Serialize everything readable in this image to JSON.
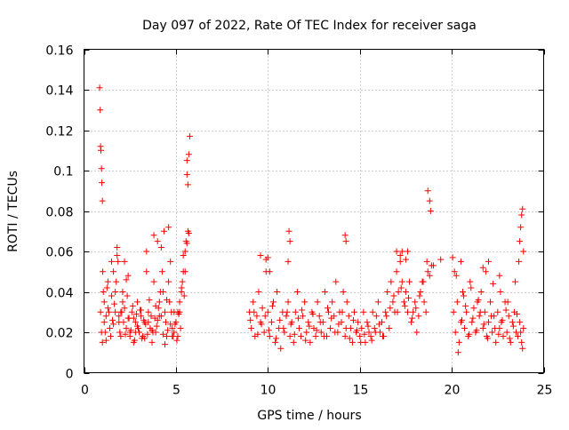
{
  "chart_data": {
    "type": "scatter",
    "title": "Day 097 of 2022, Rate Of TEC Index for receiver saga",
    "xlabel": "GPS time / hours",
    "ylabel": "ROTI / TECUs",
    "xlim": [
      0,
      25
    ],
    "ylim": [
      0,
      0.16
    ],
    "xticks": [
      0,
      5,
      10,
      15,
      20,
      25
    ],
    "yticks": [
      0,
      0.02,
      0.04,
      0.06,
      0.08,
      0.1,
      0.12,
      0.14,
      0.16
    ],
    "xtick_labels": [
      "0",
      "5",
      "10",
      "15",
      "20",
      "25"
    ],
    "ytick_labels": [
      "0",
      "0.02",
      "0.04",
      "0.06",
      "0.08",
      "0.1",
      "0.12",
      "0.14",
      "0.16"
    ],
    "grid": true,
    "marker": "plus",
    "color": "#ff0000",
    "series": [
      {
        "x": [
          0.85,
          0.88,
          0.9,
          0.92,
          0.95,
          0.97,
          1.0,
          1.02,
          1.05,
          0.9,
          0.95,
          1.0,
          1.1,
          1.2,
          1.3,
          1.4,
          1.5,
          1.6,
          1.7,
          1.8,
          1.9,
          2.0,
          2.1,
          2.2,
          2.3,
          2.4,
          2.5,
          2.6,
          2.7,
          2.8,
          2.9,
          3.0,
          3.1,
          3.2,
          3.3,
          3.4,
          3.5,
          3.6,
          3.7,
          3.8,
          3.9,
          4.0,
          4.1,
          4.2,
          4.3,
          4.4,
          4.5,
          4.6,
          4.7,
          4.8,
          4.9,
          5.0,
          5.1,
          5.2,
          5.3,
          5.4,
          5.5,
          5.6,
          5.7,
          5.75,
          1.15,
          1.25,
          1.35,
          1.45,
          1.55,
          1.65,
          1.75,
          1.85,
          1.95,
          2.05,
          2.15,
          2.25,
          2.35,
          2.45,
          2.55,
          2.65,
          2.75,
          2.85,
          2.95,
          3.05,
          3.15,
          3.25,
          3.35,
          3.45,
          3.55,
          3.65,
          3.75,
          3.85,
          3.95,
          4.05,
          4.15,
          4.25,
          4.35,
          4.45,
          4.55,
          4.65,
          4.75,
          4.85,
          4.95,
          5.05,
          5.15,
          5.25,
          5.35,
          5.45,
          5.55,
          5.65,
          1.1,
          1.3,
          1.5,
          1.7,
          1.9,
          2.1,
          2.3,
          2.5,
          2.7,
          2.9,
          3.1,
          3.3,
          3.5,
          3.7,
          3.9,
          4.1,
          4.3,
          4.5,
          4.7,
          4.9,
          5.1,
          5.3,
          5.5,
          1.2,
          1.6,
          2.0,
          2.4,
          2.8,
          3.2,
          3.6,
          4.0,
          4.4,
          4.8,
          5.2,
          5.6,
          1.8,
          2.2,
          3.4,
          3.8,
          4.2,
          4.6,
          5.4,
          5.6,
          5.65,
          5.7
        ],
        "y": [
          0.141,
          0.13,
          0.112,
          0.11,
          0.101,
          0.094,
          0.085,
          0.05,
          0.04,
          0.03,
          0.02,
          0.015,
          0.035,
          0.028,
          0.045,
          0.022,
          0.038,
          0.05,
          0.03,
          0.062,
          0.025,
          0.018,
          0.04,
          0.032,
          0.022,
          0.048,
          0.02,
          0.03,
          0.015,
          0.025,
          0.035,
          0.02,
          0.028,
          0.018,
          0.025,
          0.06,
          0.03,
          0.022,
          0.015,
          0.045,
          0.02,
          0.065,
          0.035,
          0.028,
          0.04,
          0.03,
          0.018,
          0.045,
          0.055,
          0.022,
          0.03,
          0.025,
          0.018,
          0.035,
          0.04,
          0.05,
          0.06,
          0.105,
          0.108,
          0.117,
          0.02,
          0.042,
          0.03,
          0.018,
          0.026,
          0.034,
          0.045,
          0.055,
          0.02,
          0.03,
          0.025,
          0.019,
          0.038,
          0.027,
          0.021,
          0.033,
          0.016,
          0.029,
          0.022,
          0.031,
          0.017,
          0.026,
          0.024,
          0.019,
          0.036,
          0.028,
          0.02,
          0.027,
          0.023,
          0.032,
          0.04,
          0.05,
          0.07,
          0.025,
          0.021,
          0.035,
          0.03,
          0.018,
          0.024,
          0.016,
          0.029,
          0.022,
          0.045,
          0.038,
          0.065,
          0.07,
          0.025,
          0.032,
          0.055,
          0.04,
          0.028,
          0.035,
          0.046,
          0.018,
          0.027,
          0.023,
          0.031,
          0.017,
          0.025,
          0.021,
          0.033,
          0.028,
          0.019,
          0.036,
          0.024,
          0.02,
          0.03,
          0.042,
          0.05,
          0.016,
          0.024,
          0.03,
          0.027,
          0.02,
          0.018,
          0.022,
          0.026,
          0.014,
          0.018,
          0.03,
          0.064,
          0.058,
          0.055,
          0.05,
          0.068,
          0.062,
          0.072,
          0.058,
          0.098,
          0.093,
          0.069
        ]
      },
      {
        "x": [
          9.0,
          9.1,
          9.2,
          9.3,
          9.4,
          9.5,
          9.6,
          9.7,
          9.8,
          9.9,
          10.0,
          10.1,
          10.2,
          10.3,
          10.4,
          10.5,
          10.6,
          10.7,
          10.8,
          10.9,
          11.0,
          11.1,
          11.2,
          11.3,
          11.4,
          11.5,
          11.6,
          11.7,
          11.8,
          11.9,
          12.0,
          12.1,
          12.2,
          12.3,
          12.4,
          12.5,
          12.6,
          12.7,
          12.8,
          12.9,
          13.0,
          13.1,
          13.2,
          13.3,
          13.4,
          13.5,
          13.6,
          13.7,
          13.8,
          13.9,
          14.0,
          14.1,
          14.2,
          14.3,
          14.4,
          14.5,
          14.6,
          14.7,
          14.8,
          14.9,
          15.0,
          15.1,
          15.2,
          15.3,
          15.4,
          15.5,
          15.6,
          15.7,
          15.8,
          15.9,
          16.0,
          16.1,
          16.2,
          16.3,
          16.4,
          16.5,
          16.6,
          16.7,
          16.8,
          16.9,
          17.0,
          17.1,
          17.2,
          17.3,
          17.4,
          17.5,
          17.6,
          17.7,
          17.8,
          17.9,
          18.0,
          18.1,
          18.2,
          18.3,
          18.4,
          18.5,
          18.6,
          18.7,
          18.8,
          9.05,
          9.25,
          9.45,
          9.65,
          9.85,
          10.05,
          10.25,
          10.45,
          10.65,
          10.85,
          11.05,
          11.25,
          11.45,
          11.65,
          11.85,
          12.05,
          12.25,
          12.45,
          12.65,
          12.85,
          13.05,
          13.25,
          13.45,
          13.65,
          13.85,
          14.05,
          14.25,
          14.45,
          14.65,
          14.85,
          15.05,
          15.25,
          15.45,
          15.65,
          15.85,
          16.05,
          16.25,
          16.45,
          16.65,
          16.85,
          17.05,
          17.25,
          17.45,
          17.65,
          17.85,
          18.05,
          18.25,
          18.45,
          18.65,
          9.6,
          9.9,
          10.0,
          10.1,
          11.1,
          11.15,
          11.2,
          14.2,
          14.25,
          17.0,
          17.2,
          17.3,
          17.5,
          17.6,
          18.7,
          18.8,
          18.85,
          18.9,
          19.0,
          19.4
        ],
        "y": [
          0.03,
          0.022,
          0.035,
          0.018,
          0.028,
          0.04,
          0.025,
          0.032,
          0.02,
          0.05,
          0.03,
          0.018,
          0.025,
          0.035,
          0.015,
          0.04,
          0.022,
          0.012,
          0.03,
          0.02,
          0.028,
          0.035,
          0.018,
          0.025,
          0.015,
          0.03,
          0.04,
          0.022,
          0.018,
          0.028,
          0.035,
          0.02,
          0.025,
          0.015,
          0.03,
          0.022,
          0.018,
          0.035,
          0.028,
          0.02,
          0.025,
          0.04,
          0.018,
          0.03,
          0.022,
          0.035,
          0.028,
          0.045,
          0.02,
          0.03,
          0.025,
          0.04,
          0.018,
          0.035,
          0.028,
          0.022,
          0.015,
          0.03,
          0.02,
          0.025,
          0.018,
          0.022,
          0.03,
          0.015,
          0.025,
          0.02,
          0.018,
          0.03,
          0.022,
          0.028,
          0.035,
          0.02,
          0.025,
          0.018,
          0.03,
          0.04,
          0.022,
          0.045,
          0.035,
          0.03,
          0.05,
          0.04,
          0.055,
          0.045,
          0.035,
          0.04,
          0.03,
          0.045,
          0.025,
          0.03,
          0.035,
          0.02,
          0.028,
          0.04,
          0.045,
          0.035,
          0.03,
          0.05,
          0.048,
          0.026,
          0.03,
          0.019,
          0.024,
          0.028,
          0.021,
          0.033,
          0.017,
          0.026,
          0.022,
          0.03,
          0.024,
          0.019,
          0.027,
          0.031,
          0.016,
          0.023,
          0.029,
          0.021,
          0.025,
          0.018,
          0.032,
          0.027,
          0.02,
          0.024,
          0.03,
          0.022,
          0.017,
          0.026,
          0.021,
          0.015,
          0.019,
          0.023,
          0.016,
          0.02,
          0.024,
          0.018,
          0.028,
          0.032,
          0.038,
          0.03,
          0.042,
          0.033,
          0.037,
          0.027,
          0.032,
          0.038,
          0.045,
          0.055,
          0.058,
          0.056,
          0.057,
          0.05,
          0.055,
          0.07,
          0.065,
          0.068,
          0.065,
          0.06,
          0.058,
          0.06,
          0.056,
          0.06,
          0.09,
          0.085,
          0.08,
          0.053,
          0.053,
          0.056
        ]
      },
      {
        "x": [
          20.1,
          20.2,
          20.3,
          20.4,
          20.5,
          20.6,
          20.7,
          20.8,
          20.9,
          21.0,
          21.1,
          21.2,
          21.3,
          21.4,
          21.5,
          21.6,
          21.7,
          21.8,
          21.9,
          22.0,
          22.1,
          22.2,
          22.3,
          22.4,
          22.5,
          22.6,
          22.7,
          22.8,
          22.9,
          23.0,
          23.1,
          23.2,
          23.3,
          23.4,
          23.5,
          23.6,
          23.7,
          23.8,
          23.9,
          20.15,
          20.35,
          20.55,
          20.75,
          20.95,
          21.15,
          21.35,
          21.55,
          21.75,
          21.95,
          22.15,
          22.35,
          22.55,
          22.75,
          22.95,
          23.15,
          23.35,
          23.55,
          23.75,
          23.85,
          20.25,
          20.65,
          21.05,
          21.45,
          21.85,
          22.25,
          22.65,
          23.05,
          23.45,
          23.65,
          23.7,
          23.75,
          23.8,
          23.85,
          23.9,
          20.05,
          20.5,
          21.7,
          22.0,
          22.6
        ],
        "y": [
          0.03,
          0.02,
          0.035,
          0.015,
          0.025,
          0.04,
          0.022,
          0.03,
          0.018,
          0.045,
          0.025,
          0.032,
          0.02,
          0.035,
          0.028,
          0.04,
          0.022,
          0.03,
          0.018,
          0.025,
          0.035,
          0.02,
          0.028,
          0.015,
          0.03,
          0.022,
          0.025,
          0.018,
          0.035,
          0.02,
          0.028,
          0.015,
          0.025,
          0.03,
          0.02,
          0.018,
          0.025,
          0.015,
          0.022,
          0.05,
          0.01,
          0.026,
          0.033,
          0.019,
          0.027,
          0.021,
          0.03,
          0.024,
          0.017,
          0.028,
          0.022,
          0.019,
          0.026,
          0.031,
          0.017,
          0.023,
          0.029,
          0.02,
          0.012,
          0.048,
          0.038,
          0.042,
          0.036,
          0.05,
          0.044,
          0.04,
          0.035,
          0.045,
          0.055,
          0.065,
          0.072,
          0.078,
          0.081,
          0.06,
          0.057,
          0.055,
          0.052,
          0.055,
          0.048
        ]
      }
    ]
  }
}
